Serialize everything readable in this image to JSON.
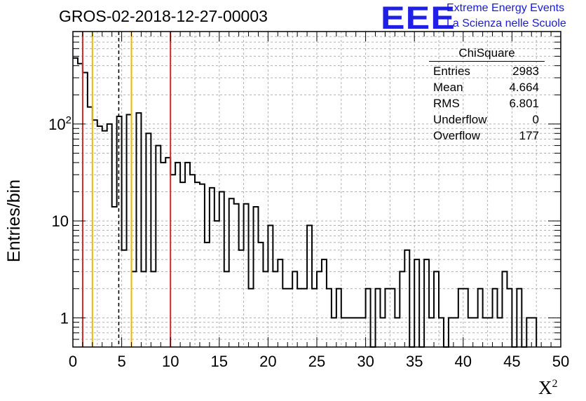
{
  "header": {
    "title": "GROS-02-2018-12-27-00003",
    "logo_text": "EEE",
    "logo_line1": "Extreme Energy Events",
    "logo_line2": "La Scienza nelle Scuole"
  },
  "stats_box": {
    "title": "ChiSquare",
    "rows": [
      {
        "label": "Entries",
        "value": "2983"
      },
      {
        "label": "Mean",
        "value": "4.664"
      },
      {
        "label": "RMS",
        "value": "6.801"
      },
      {
        "label": "Underflow",
        "value": "0"
      },
      {
        "label": "Overflow",
        "value": "177"
      }
    ]
  },
  "colors": {
    "histogram": "#000000",
    "red_lines": "#d62728",
    "orange_lines": "#f0b800",
    "dashed_line": "#000000",
    "logo": "#1f1fe6"
  },
  "chart_data": {
    "type": "histogram",
    "title": "GROS-02-2018-12-27-00003",
    "xlabel": "X²",
    "ylabel": "Entries/bin",
    "x_scale": "linear",
    "y_scale": "log",
    "xlim": [
      0,
      50
    ],
    "ylim": [
      0.5,
      900
    ],
    "bin_width": 0.5,
    "x_ticks": [
      "0",
      "5",
      "10",
      "15",
      "20",
      "25",
      "30",
      "35",
      "40",
      "45",
      "50"
    ],
    "y_ticks": [
      "1",
      "10",
      "10²"
    ],
    "grid": true,
    "values": [
      480,
      420,
      340,
      150,
      110,
      95,
      85,
      100,
      14,
      120,
      5,
      125,
      3,
      130,
      3,
      80,
      3,
      60,
      40,
      45,
      30,
      40,
      25,
      40,
      30,
      25,
      24,
      6,
      22,
      10,
      20,
      3,
      17,
      15,
      5,
      15,
      2,
      14,
      6,
      3,
      9,
      3,
      4,
      2,
      2,
      3,
      2,
      2,
      9,
      2,
      3,
      4,
      2,
      1,
      2,
      1,
      1,
      1,
      1,
      1,
      2,
      0,
      2,
      1,
      2,
      2,
      1,
      3,
      5,
      0,
      4,
      0,
      4,
      1,
      3,
      1,
      0,
      1,
      1,
      2,
      2,
      1,
      1,
      2,
      1,
      1,
      2,
      1,
      3,
      2,
      0,
      2,
      0,
      1,
      1
    ],
    "vertical_lines": [
      {
        "x": 1.0,
        "color": "red",
        "style": "solid"
      },
      {
        "x": 2.0,
        "color": "orange",
        "style": "solid"
      },
      {
        "x": 4.7,
        "color": "black",
        "style": "dashed"
      },
      {
        "x": 6.0,
        "color": "orange",
        "style": "solid"
      },
      {
        "x": 10.0,
        "color": "red",
        "style": "solid"
      }
    ]
  }
}
